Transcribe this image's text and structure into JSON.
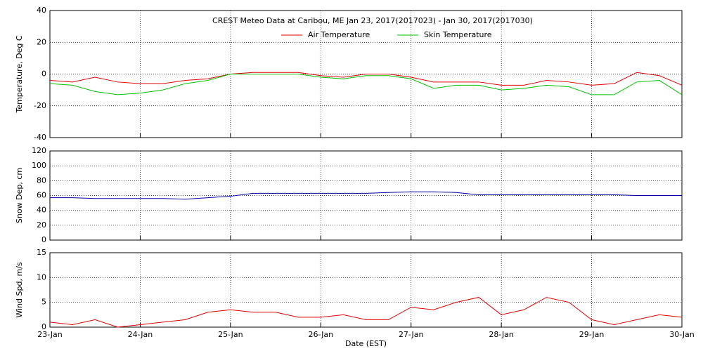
{
  "chart_data": [
    {
      "type": "line",
      "title": "CREST Meteo Data at Caribou, ME   Jan 23, 2017(2017023) - Jan 30, 2017(2017030)",
      "ylabel": "Temperature, Deg C",
      "x": [
        0,
        0.25,
        0.5,
        0.75,
        1,
        1.25,
        1.5,
        1.75,
        2,
        2.25,
        2.5,
        2.75,
        3,
        3.25,
        3.5,
        3.75,
        4,
        4.25,
        4.5,
        4.75,
        5,
        5.25,
        5.5,
        5.75,
        6,
        6.25,
        6.5,
        6.75,
        7
      ],
      "series": [
        {
          "name": "Air Temperature",
          "color": "#e00000",
          "values": [
            -4,
            -5,
            -2,
            -5,
            -6,
            -6,
            -4,
            -3,
            0,
            1,
            1,
            1,
            -1,
            -2,
            0,
            0,
            -2,
            -5,
            -5,
            -5,
            -7,
            -7,
            -4,
            -5,
            -7,
            -6,
            1,
            -1,
            -7
          ]
        },
        {
          "name": "Skin Temperature",
          "color": "#00c000",
          "values": [
            -6,
            -7,
            -11,
            -13,
            -12,
            -10,
            -6,
            -4,
            0,
            0,
            0,
            0,
            -2,
            -3,
            -1,
            -1,
            -3,
            -9,
            -7,
            -7,
            -10,
            -9,
            -7,
            -8,
            -13,
            -13,
            -5,
            -4,
            -13
          ]
        }
      ],
      "xlim": [
        0,
        7
      ],
      "xticks": [
        0,
        1,
        2,
        3,
        4,
        5,
        6,
        7
      ],
      "ylim": [
        -40,
        40
      ],
      "yticks": [
        -40,
        -20,
        0,
        20,
        40
      ],
      "grid": true
    },
    {
      "type": "line",
      "ylabel": "Snow Dep, cm",
      "x": [
        0,
        0.25,
        0.5,
        0.75,
        1,
        1.25,
        1.5,
        1.75,
        2,
        2.25,
        2.5,
        2.75,
        3,
        3.25,
        3.5,
        3.75,
        4,
        4.25,
        4.5,
        4.75,
        5,
        5.25,
        5.5,
        5.75,
        6,
        6.25,
        6.5,
        6.75,
        7
      ],
      "values": [
        57,
        57,
        56,
        56,
        56,
        56,
        55,
        57,
        59,
        63,
        63,
        63,
        63,
        63,
        63,
        64,
        65,
        65,
        64,
        61,
        61,
        61,
        61,
        61,
        61,
        61,
        60,
        60,
        60
      ],
      "color": "#0000a0",
      "xlim": [
        0,
        7
      ],
      "xticks": [
        0,
        1,
        2,
        3,
        4,
        5,
        6,
        7
      ],
      "ylim": [
        0,
        120
      ],
      "yticks": [
        0,
        20,
        40,
        60,
        80,
        100,
        120
      ],
      "grid": true
    },
    {
      "type": "line",
      "ylabel": "Wind Spd, m/s",
      "xlabel": "Date (EST)",
      "x": [
        0,
        0.25,
        0.5,
        0.75,
        1,
        1.25,
        1.5,
        1.75,
        2,
        2.25,
        2.5,
        2.75,
        3,
        3.25,
        3.5,
        3.75,
        4,
        4.25,
        4.5,
        4.75,
        5,
        5.25,
        5.5,
        5.75,
        6,
        6.25,
        6.5,
        6.75,
        7
      ],
      "values": [
        1,
        0.5,
        1.5,
        0,
        0.5,
        1,
        1.5,
        3,
        3.5,
        3,
        3,
        2,
        2,
        2.5,
        1.5,
        1.5,
        4,
        3.5,
        5,
        6,
        2.5,
        3.5,
        6,
        5,
        1.5,
        0.5,
        1.5,
        2.5,
        2
      ],
      "color": "#e00000",
      "xlim": [
        0,
        7
      ],
      "xticks": [
        {
          "value": 0,
          "label": "23-Jan"
        },
        {
          "value": 1,
          "label": "24-Jan"
        },
        {
          "value": 2,
          "label": "25-Jan"
        },
        {
          "value": 3,
          "label": "26-Jan"
        },
        {
          "value": 4,
          "label": "27-Jan"
        },
        {
          "value": 5,
          "label": "28-Jan"
        },
        {
          "value": 6,
          "label": "29-Jan"
        },
        {
          "value": 7,
          "label": "30-Jan"
        }
      ],
      "ylim": [
        0,
        15
      ],
      "yticks": [
        0,
        5,
        10,
        15
      ],
      "grid": true
    }
  ]
}
